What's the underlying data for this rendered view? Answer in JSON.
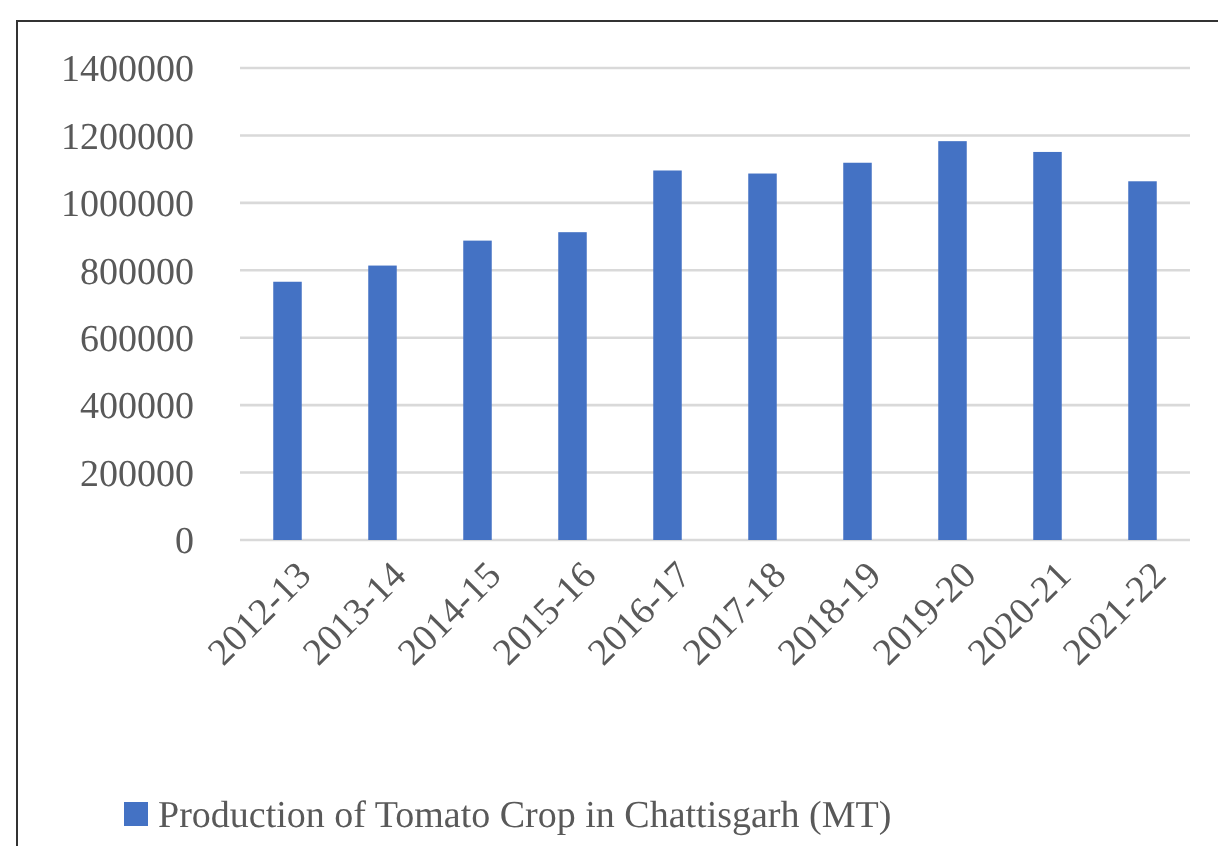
{
  "chart_data": {
    "type": "bar",
    "categories": [
      "2012-13",
      "2013-14",
      "2014-15",
      "2015-16",
      "2016-17",
      "2017-18",
      "2018-19",
      "2019-20",
      "2020-21",
      "2021-22"
    ],
    "series": [
      {
        "name": "Production of Tomato Crop in Chattisgarh (MT)",
        "color": "#4472c4",
        "values": [
          766000,
          814000,
          888000,
          913000,
          1096000,
          1087000,
          1119000,
          1183000,
          1151000,
          1064000
        ]
      }
    ],
    "ylim": [
      0,
      1400000
    ],
    "yticks": [
      0,
      200000,
      400000,
      600000,
      800000,
      1000000,
      1200000,
      1400000
    ],
    "grid": "y",
    "legend": "bottom"
  }
}
